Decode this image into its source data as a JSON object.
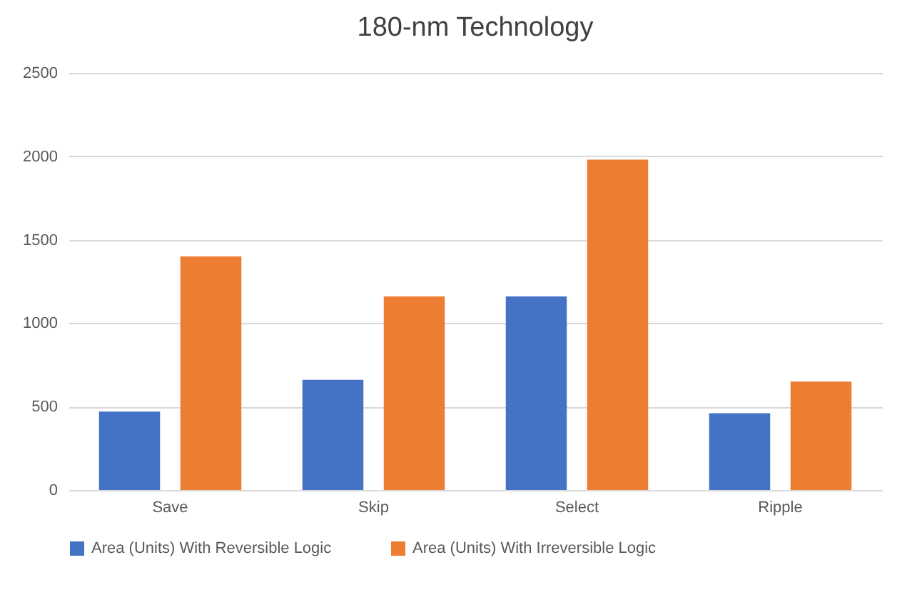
{
  "chart_data": {
    "type": "bar",
    "title": "180-nm Technology",
    "categories": [
      "Save",
      "Skip",
      "Select",
      "Ripple"
    ],
    "series": [
      {
        "name": "Area (Units) With Reversible Logic",
        "color": "#4472c4",
        "values": [
          470,
          660,
          1160,
          460
        ]
      },
      {
        "name": "Area (Units) With Irreversible Logic",
        "color": "#ed7d31",
        "values": [
          1400,
          1160,
          1980,
          650
        ]
      }
    ],
    "ylim": [
      0,
      2500
    ],
    "yticks": [
      0,
      500,
      1000,
      1500,
      2000,
      2500
    ],
    "grid": "y",
    "legend": "bottom"
  }
}
